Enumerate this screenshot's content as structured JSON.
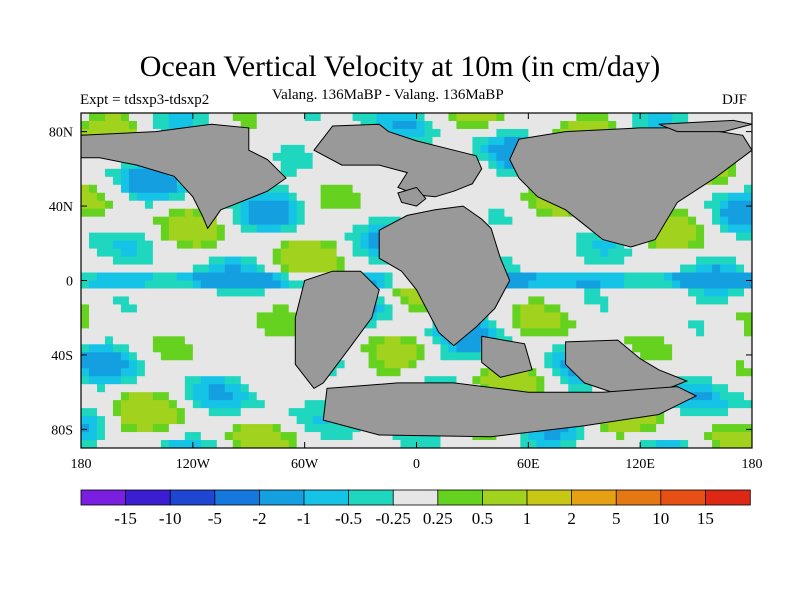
{
  "title": "Ocean Vertical Velocity at 10m (in cm/day)",
  "subtitle": "Valang. 136MaBP - Valang. 136MaBP",
  "experiment": "Expt = tdsxp3-tdsxp2",
  "season": "DJF",
  "chart_data": {
    "type": "heatmap",
    "variable": "Ocean vertical velocity at 10m difference",
    "units": "cm/day",
    "x_axis": {
      "range": [
        -180,
        180
      ],
      "ticks": [
        -180,
        -120,
        -60,
        0,
        60,
        120,
        180
      ],
      "tick_labels": [
        "180",
        "120W",
        "60W",
        "0",
        "60E",
        "120E",
        "180"
      ]
    },
    "y_axis": {
      "range": [
        -90,
        90
      ],
      "ticks": [
        80,
        40,
        0,
        -40,
        -80
      ],
      "tick_labels": [
        "80N",
        "40N",
        "0",
        "40S",
        "80S"
      ]
    },
    "colorbar": {
      "levels": [
        -15,
        -10,
        -5,
        -2,
        -1,
        -0.5,
        -0.25,
        0.25,
        0.5,
        1,
        2,
        5,
        10,
        15
      ],
      "labels": [
        "-15",
        "-10",
        "-5",
        "-2",
        "-1",
        "-0.5",
        "-0.25",
        "0.25",
        "0.5",
        "1",
        "2",
        "5",
        "10",
        "15"
      ],
      "colors": [
        "#7a1ee0",
        "#3c1ed2",
        "#1e46d2",
        "#1478dc",
        "#14a0e0",
        "#14c3e6",
        "#1ed7be",
        "#e6e6e6",
        "#64d21e",
        "#a0d21e",
        "#c8c814",
        "#e6a014",
        "#e67814",
        "#e65014",
        "#dc2814"
      ]
    },
    "land_color": "#999999",
    "continents": [
      {
        "name": "North America",
        "outline": [
          [
            -180,
            78
          ],
          [
            -140,
            80
          ],
          [
            -110,
            84
          ],
          [
            -90,
            82
          ],
          [
            -90,
            70
          ],
          [
            -80,
            65
          ],
          [
            -75,
            60
          ],
          [
            -70,
            55
          ],
          [
            -80,
            48
          ],
          [
            -105,
            38
          ],
          [
            -112,
            28
          ],
          [
            -115,
            35
          ],
          [
            -120,
            45
          ],
          [
            -130,
            56
          ],
          [
            -150,
            62
          ],
          [
            -170,
            66
          ],
          [
            -180,
            66
          ]
        ]
      },
      {
        "name": "Greenland and Europe",
        "outline": [
          [
            -55,
            70
          ],
          [
            -45,
            83
          ],
          [
            -20,
            84
          ],
          [
            -15,
            80
          ],
          [
            0,
            75
          ],
          [
            20,
            70
          ],
          [
            32,
            67
          ],
          [
            35,
            60
          ],
          [
            30,
            52
          ],
          [
            20,
            48
          ],
          [
            10,
            45
          ],
          [
            0,
            46
          ],
          [
            -10,
            50
          ],
          [
            -5,
            58
          ],
          [
            -20,
            62
          ],
          [
            -40,
            62
          ]
        ]
      },
      {
        "name": "Asia",
        "outline": [
          [
            55,
            76
          ],
          [
            80,
            80
          ],
          [
            120,
            82
          ],
          [
            150,
            82
          ],
          [
            175,
            78
          ],
          [
            180,
            70
          ],
          [
            160,
            55
          ],
          [
            140,
            42
          ],
          [
            128,
            22
          ],
          [
            115,
            18
          ],
          [
            100,
            22
          ],
          [
            90,
            30
          ],
          [
            80,
            38
          ],
          [
            65,
            45
          ],
          [
            55,
            55
          ],
          [
            50,
            65
          ]
        ]
      },
      {
        "name": "Africa",
        "outline": [
          [
            -20,
            27
          ],
          [
            -5,
            35
          ],
          [
            10,
            38
          ],
          [
            25,
            40
          ],
          [
            35,
            33
          ],
          [
            40,
            28
          ],
          [
            45,
            12
          ],
          [
            50,
            0
          ],
          [
            42,
            -15
          ],
          [
            32,
            -25
          ],
          [
            20,
            -35
          ],
          [
            12,
            -28
          ],
          [
            0,
            -5
          ],
          [
            -8,
            5
          ],
          [
            -20,
            12
          ]
        ]
      },
      {
        "name": "South America",
        "outline": [
          [
            -45,
            5
          ],
          [
            -30,
            5
          ],
          [
            -20,
            -5
          ],
          [
            -24,
            -20
          ],
          [
            -35,
            -35
          ],
          [
            -50,
            -55
          ],
          [
            -55,
            -58
          ],
          [
            -65,
            -45
          ],
          [
            -65,
            -20
          ],
          [
            -60,
            0
          ]
        ]
      },
      {
        "name": "India",
        "outline": [
          [
            35,
            -30
          ],
          [
            58,
            -34
          ],
          [
            62,
            -48
          ],
          [
            45,
            -52
          ],
          [
            35,
            -44
          ]
        ]
      },
      {
        "name": "Australia",
        "outline": [
          [
            80,
            -33
          ],
          [
            108,
            -32
          ],
          [
            120,
            -42
          ],
          [
            130,
            -48
          ],
          [
            145,
            -54
          ],
          [
            135,
            -58
          ],
          [
            105,
            -60
          ],
          [
            90,
            -55
          ],
          [
            80,
            -45
          ]
        ]
      },
      {
        "name": "Antarctica",
        "outline": [
          [
            -48,
            -58
          ],
          [
            -10,
            -55
          ],
          [
            20,
            -55
          ],
          [
            60,
            -60
          ],
          [
            100,
            -60
          ],
          [
            140,
            -57
          ],
          [
            150,
            -62
          ],
          [
            130,
            -72
          ],
          [
            90,
            -78
          ],
          [
            40,
            -84
          ],
          [
            -20,
            -83
          ],
          [
            -50,
            -75
          ]
        ]
      },
      {
        "name": "Europe island",
        "outline": [
          [
            -10,
            47
          ],
          [
            0,
            50
          ],
          [
            5,
            44
          ],
          [
            0,
            40
          ],
          [
            -8,
            42
          ]
        ]
      },
      {
        "name": "Arctic island",
        "outline": [
          [
            130,
            84
          ],
          [
            170,
            86
          ],
          [
            180,
            84
          ],
          [
            165,
            80
          ],
          [
            140,
            80
          ]
        ]
      }
    ]
  }
}
